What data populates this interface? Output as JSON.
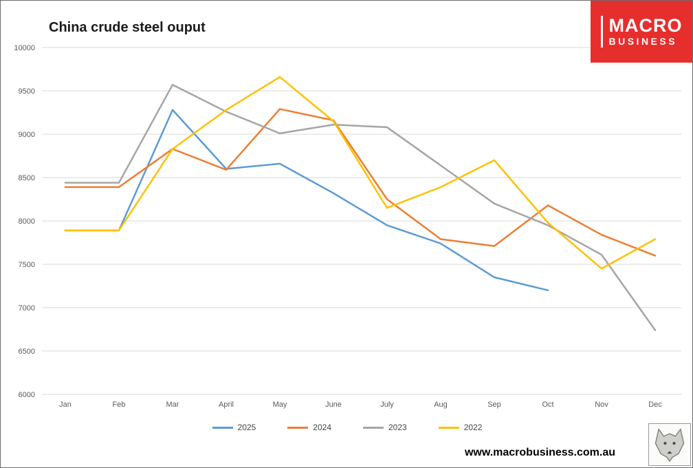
{
  "chart_data": {
    "type": "line",
    "title": "China crude steel ouput",
    "categories": [
      "Jan",
      "Feb",
      "Mar",
      "April",
      "May",
      "June",
      "July",
      "Aug",
      "Sep",
      "Oct",
      "Nov",
      "Dec"
    ],
    "series": [
      {
        "name": "2025",
        "color": "#5B9BD5",
        "values": [
          7890,
          7890,
          9280,
          8600,
          8660,
          8320,
          7950,
          7740,
          7350,
          7200,
          null,
          null
        ]
      },
      {
        "name": "2024",
        "color": "#ED7D31",
        "values": [
          8390,
          8390,
          8830,
          8590,
          9290,
          9160,
          8250,
          7790,
          7710,
          8180,
          7840,
          7600
        ]
      },
      {
        "name": "2023",
        "color": "#A5A5A5",
        "values": [
          8440,
          8440,
          9570,
          9260,
          9010,
          9110,
          9080,
          8640,
          8200,
          7950,
          7610,
          6740
        ]
      },
      {
        "name": "2022",
        "color": "#FFC000",
        "values": [
          7890,
          7890,
          8830,
          9280,
          9660,
          9150,
          8150,
          8390,
          8700,
          7980,
          7450,
          7790
        ]
      }
    ],
    "ylim": [
      6000,
      10000
    ],
    "ytick_step": 500,
    "grid": true,
    "legend_position": "bottom"
  },
  "branding": {
    "logo_line1": "MACRO",
    "logo_line2": "BUSINESS",
    "logo_bg": "#E62E2D",
    "website": "www.macrobusiness.com.au"
  }
}
